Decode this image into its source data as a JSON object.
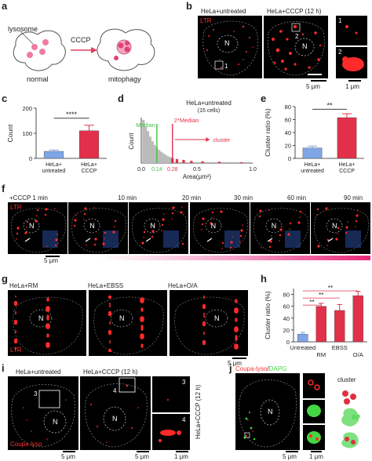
{
  "panel_letters": [
    "a",
    "b",
    "c",
    "d",
    "e",
    "f",
    "g",
    "h",
    "i",
    "j"
  ],
  "a": {
    "lysosome": "lysosome",
    "cccp": "CCCP",
    "normal": "normal",
    "mitophagy": "mitophagy"
  },
  "b": {
    "title_left": "HeLa+untreated",
    "title_right": "HeLa+CCCP (12 h)",
    "channel": "LTR",
    "nucleus": "N",
    "roi1": "1",
    "roi2": "2",
    "inset1": "1",
    "inset2": "2",
    "scale_main": "5 μm",
    "scale_inset": "1 μm"
  },
  "c": {
    "ylabel": "Count",
    "sig": "****",
    "yticks": [
      "0",
      "100",
      "200"
    ],
    "cat1": "HeLa+\nuntreated",
    "cat2": "HeLa+\nCCCP"
  },
  "d": {
    "title": "HeLa+untreated",
    "subtitle": "(15 cells)",
    "ylabel": "Count",
    "xlabel": "Area(μm²)",
    "median": "Median",
    "median2": "2*Median",
    "cluster": "cluster",
    "xticks": [
      "0.0",
      "0.14",
      "0.28",
      "0.5",
      "1.0"
    ]
  },
  "e": {
    "ylabel": "Cluster ratio (%)",
    "sig": "**",
    "yticks": [
      "0",
      "20",
      "40",
      "60",
      "80"
    ],
    "cat1": "HeLa+\nuntreated",
    "cat2": "HeLa+\nCCCP"
  },
  "f": {
    "labels": [
      "+CCCP 1 min",
      "10 min",
      "20 min",
      "30 min",
      "60 min",
      "90 min"
    ],
    "channel": "LTR",
    "nucleus": "N",
    "scale": "5 μm"
  },
  "g": {
    "labels": [
      "HeLa+RM",
      "HeLa+EBSS",
      "HeLa+O/A"
    ],
    "channel": "LTR",
    "nucleus": "N",
    "scale": "5 μm"
  },
  "h": {
    "ylabel": "Cluster ratio (%)",
    "sig": [
      "**",
      "**",
      "**"
    ],
    "yticks": [
      "0",
      "20",
      "40",
      "60",
      "80"
    ],
    "cats": [
      "Untreated",
      "RM",
      "EBSS",
      "O/A"
    ]
  },
  "i": {
    "title_left": "HeLa+untreated",
    "title_right": "HeLa+CCCP (12 h)",
    "channel": "Coupa-lyso",
    "nucleus": "N",
    "roi3": "3",
    "roi4": "4",
    "inset3": "3",
    "inset4": "4",
    "scale_main1": "5 μm",
    "scale_main2": "5 μm",
    "scale_inset": "1 μm"
  },
  "j": {
    "side_label": "HeLa+CCCP (12 h)",
    "ch1": "Coupa-lyso",
    "sep": "/",
    "ch2": "DAPG",
    "nucleus": "N",
    "cluster": "cluster",
    "ap": "AP",
    "scale_main": "5 μm",
    "scale_inset": "1 μm"
  },
  "colors": {
    "ltr_red": "#ff2a2a",
    "bar_blue": "#7ea6e6",
    "bar_red": "#e2304a",
    "dapg_green": "#43d843"
  },
  "chart_data": [
    {
      "type": "bar",
      "panel": "c",
      "categories": [
        "HeLa+untreated",
        "HeLa+CCCP"
      ],
      "values": [
        28,
        110
      ],
      "errors": [
        5,
        22
      ],
      "ylabel": "Count",
      "ylim": [
        0,
        200
      ]
    },
    {
      "type": "bar",
      "panel": "e",
      "categories": [
        "HeLa+untreated",
        "HeLa+CCCP"
      ],
      "values": [
        16,
        63
      ],
      "errors": [
        3,
        6
      ],
      "ylabel": "Cluster ratio (%)",
      "ylim": [
        0,
        80
      ]
    },
    {
      "type": "bar",
      "panel": "h",
      "categories": [
        "Untreated",
        "RM",
        "EBSS",
        "O/A"
      ],
      "values": [
        13,
        60,
        53,
        78
      ],
      "errors": [
        3,
        5,
        10,
        7
      ],
      "ylabel": "Cluster ratio (%)",
      "ylim": [
        0,
        90
      ]
    },
    {
      "type": "bar",
      "panel": "d",
      "title": "HeLa+untreated",
      "xlabel": "Area(μm²)",
      "ylabel": "Count",
      "x": [
        0.02,
        0.04,
        0.06,
        0.08,
        0.1,
        0.12,
        0.14,
        0.16,
        0.18,
        0.2,
        0.22,
        0.24,
        0.26,
        0.28,
        0.32,
        0.38,
        0.45,
        0.55,
        0.7,
        0.9
      ],
      "values": [
        95,
        80,
        70,
        58,
        48,
        40,
        34,
        29,
        25,
        21,
        18,
        15,
        13,
        11,
        9,
        7,
        5,
        4,
        3,
        2
      ],
      "median": 0.14,
      "two_median": 0.28,
      "xlim": [
        0,
        1.0
      ]
    }
  ]
}
